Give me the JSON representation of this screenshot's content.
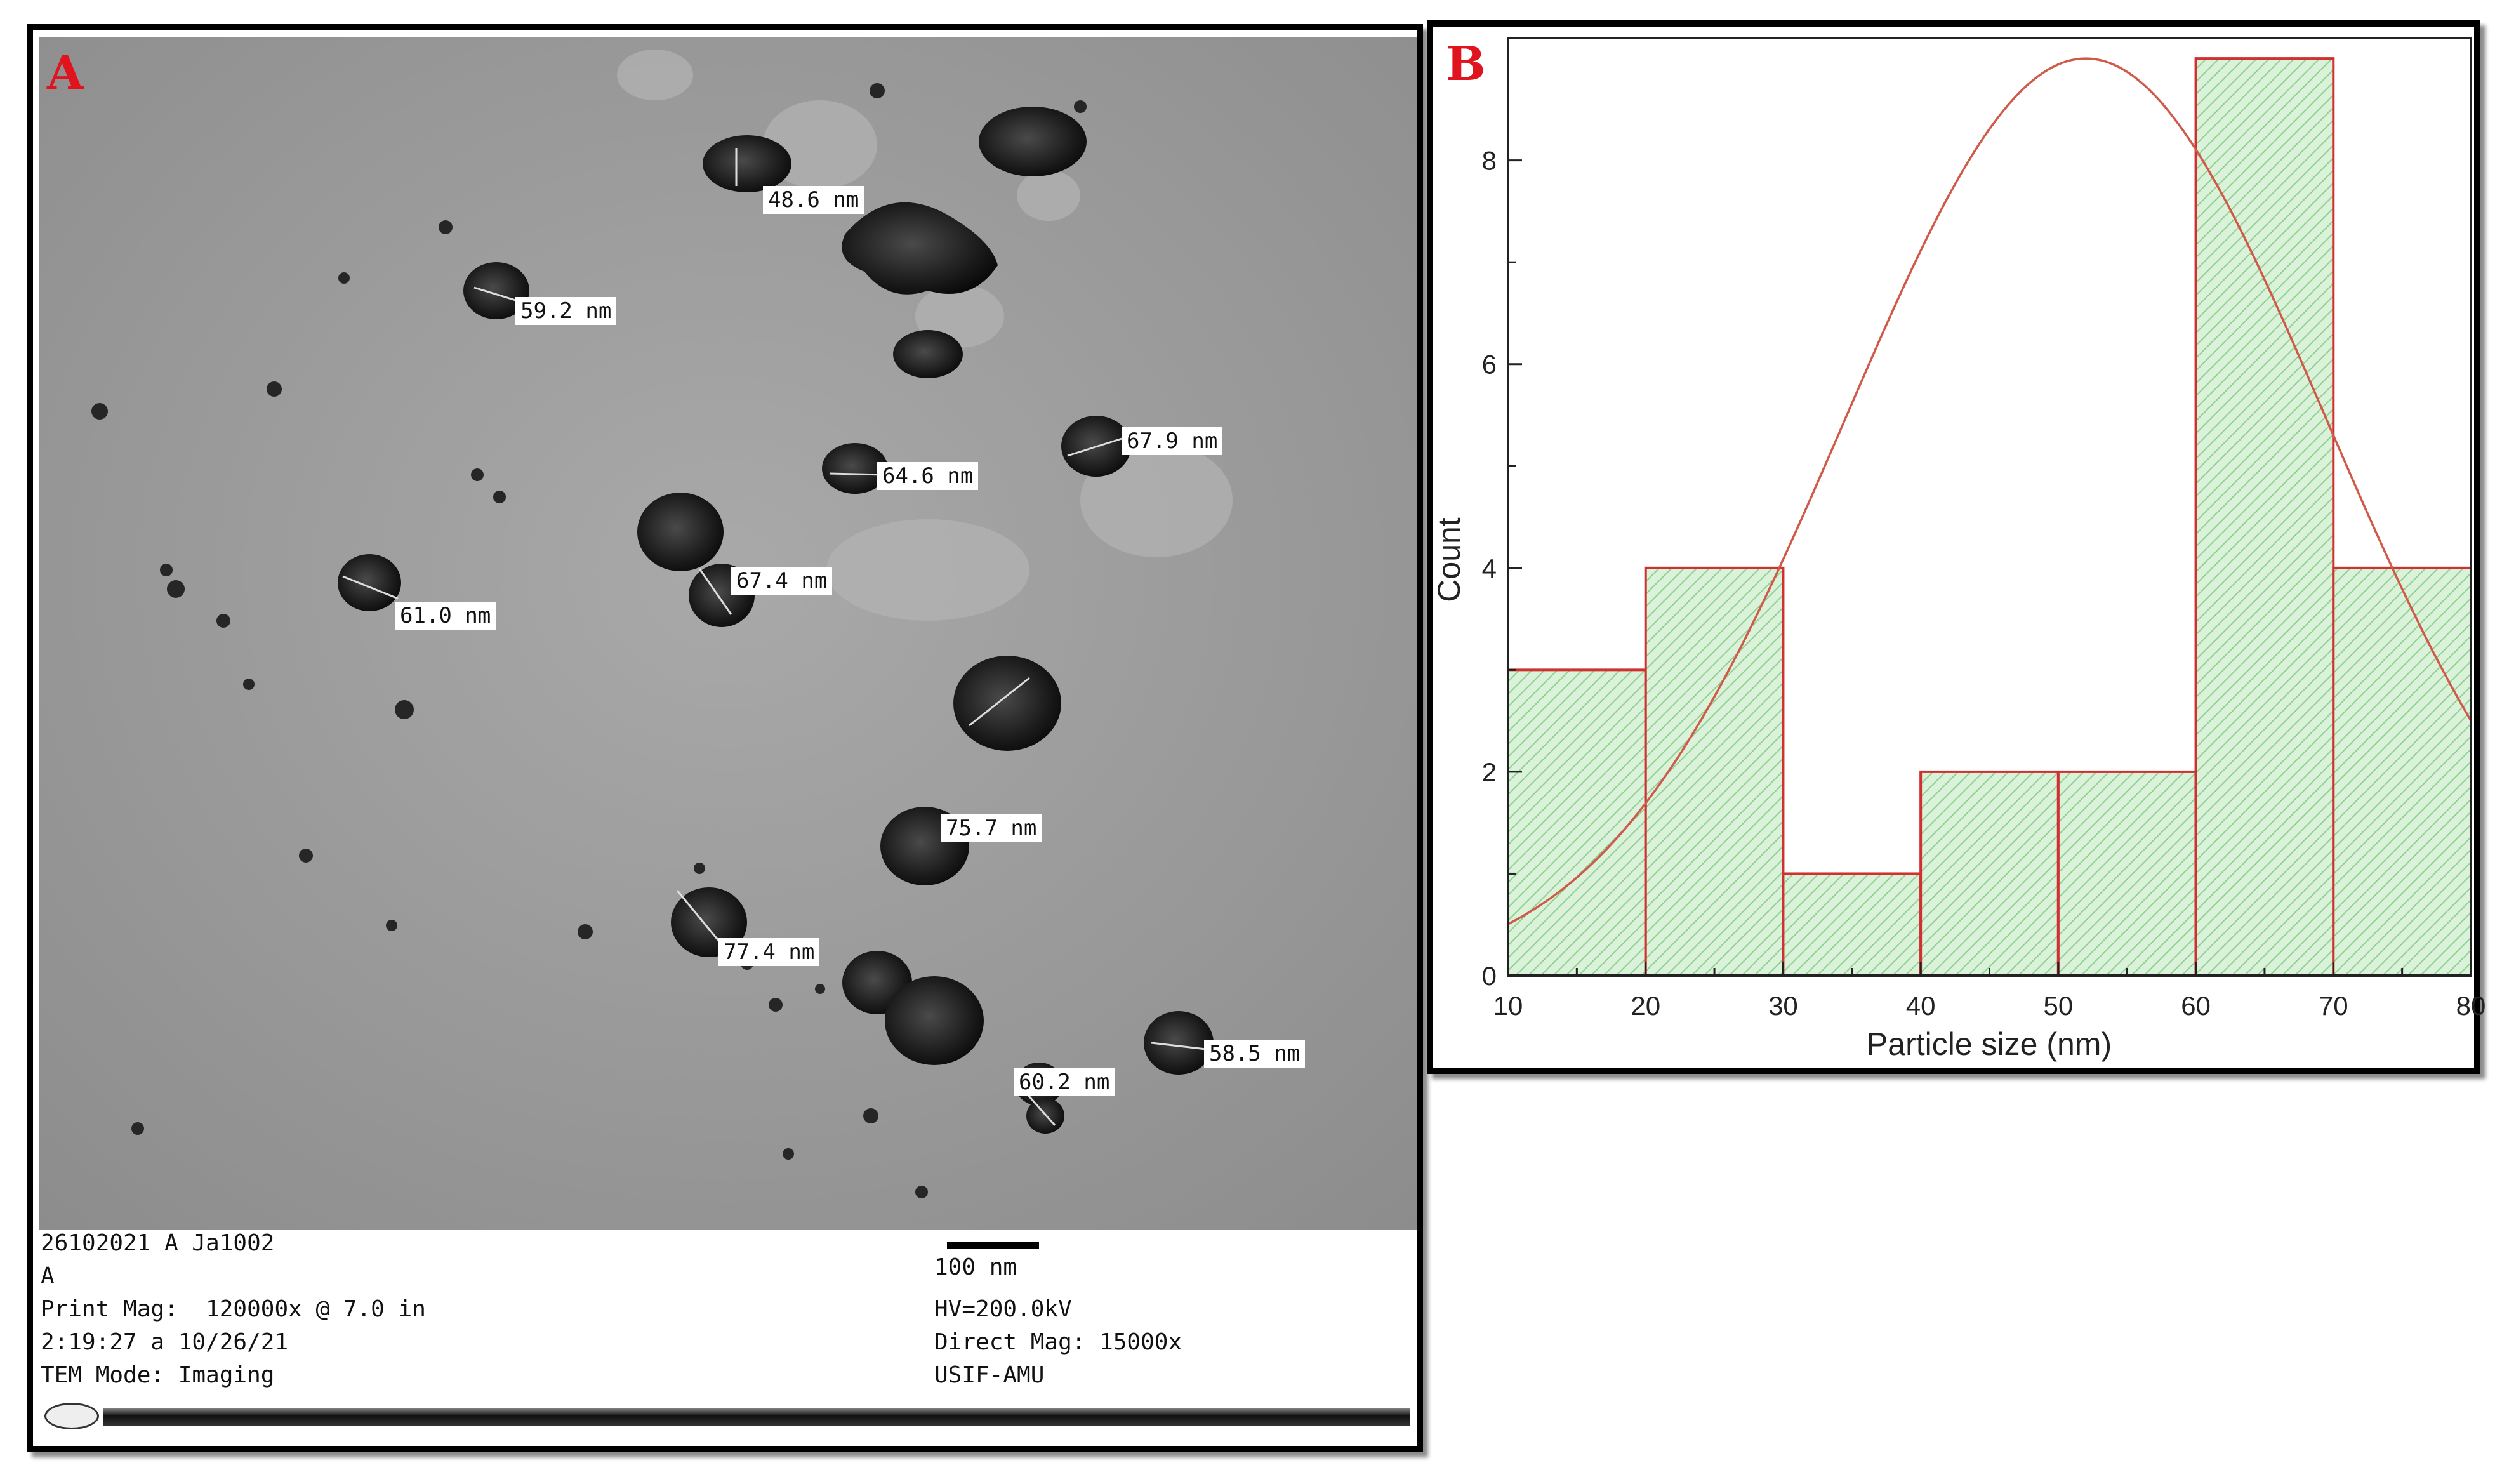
{
  "panel_a": {
    "letter": "A",
    "measurements": [
      {
        "label": "48.6 nm"
      },
      {
        "label": "59.2 nm"
      },
      {
        "label": "64.6 nm"
      },
      {
        "label": "67.9 nm"
      },
      {
        "label": "67.4 nm"
      },
      {
        "label": "61.0 nm"
      },
      {
        "label": "75.7 nm"
      },
      {
        "label": "77.4 nm"
      },
      {
        "label": "58.5 nm"
      },
      {
        "label": "60.2 nm"
      }
    ],
    "info": {
      "line1": "26102021 A Ja1002",
      "line2": "A",
      "line3": "Print Mag:  120000x @ 7.0 in",
      "line4": "2:19:27 a 10/26/21",
      "line5": "TEM Mode: Imaging",
      "scale_bar": "100 nm",
      "hv": "HV=200.0kV",
      "direct_mag": "Direct Mag: 15000x",
      "facility": "USIF-AMU"
    }
  },
  "panel_b": {
    "letter": "B"
  },
  "chart_data": {
    "type": "bar",
    "title": "",
    "xlabel": "Particle size (nm)",
    "ylabel": "Count",
    "xlim": [
      10,
      80
    ],
    "ylim": [
      0,
      9.2
    ],
    "x_ticks": [
      10,
      20,
      30,
      40,
      50,
      60,
      70,
      80
    ],
    "y_ticks": [
      0,
      2,
      4,
      6,
      8
    ],
    "bins": [
      {
        "from": 10,
        "to": 20,
        "count": 3
      },
      {
        "from": 20,
        "to": 30,
        "count": 4
      },
      {
        "from": 30,
        "to": 40,
        "count": 1
      },
      {
        "from": 40,
        "to": 50,
        "count": 2
      },
      {
        "from": 50,
        "to": 60,
        "count": 2
      },
      {
        "from": 60,
        "to": 70,
        "count": 9
      },
      {
        "from": 70,
        "to": 80,
        "count": 4
      }
    ],
    "fit_curve": {
      "type": "gaussian",
      "mean": 52,
      "sigma": 17.5,
      "peak": 9
    },
    "colors": {
      "bar_fill": "#d9f2d9",
      "bar_hatch": "#8fd08f",
      "bar_edge": "#d03030",
      "fit_line": "#d05a4a"
    }
  }
}
